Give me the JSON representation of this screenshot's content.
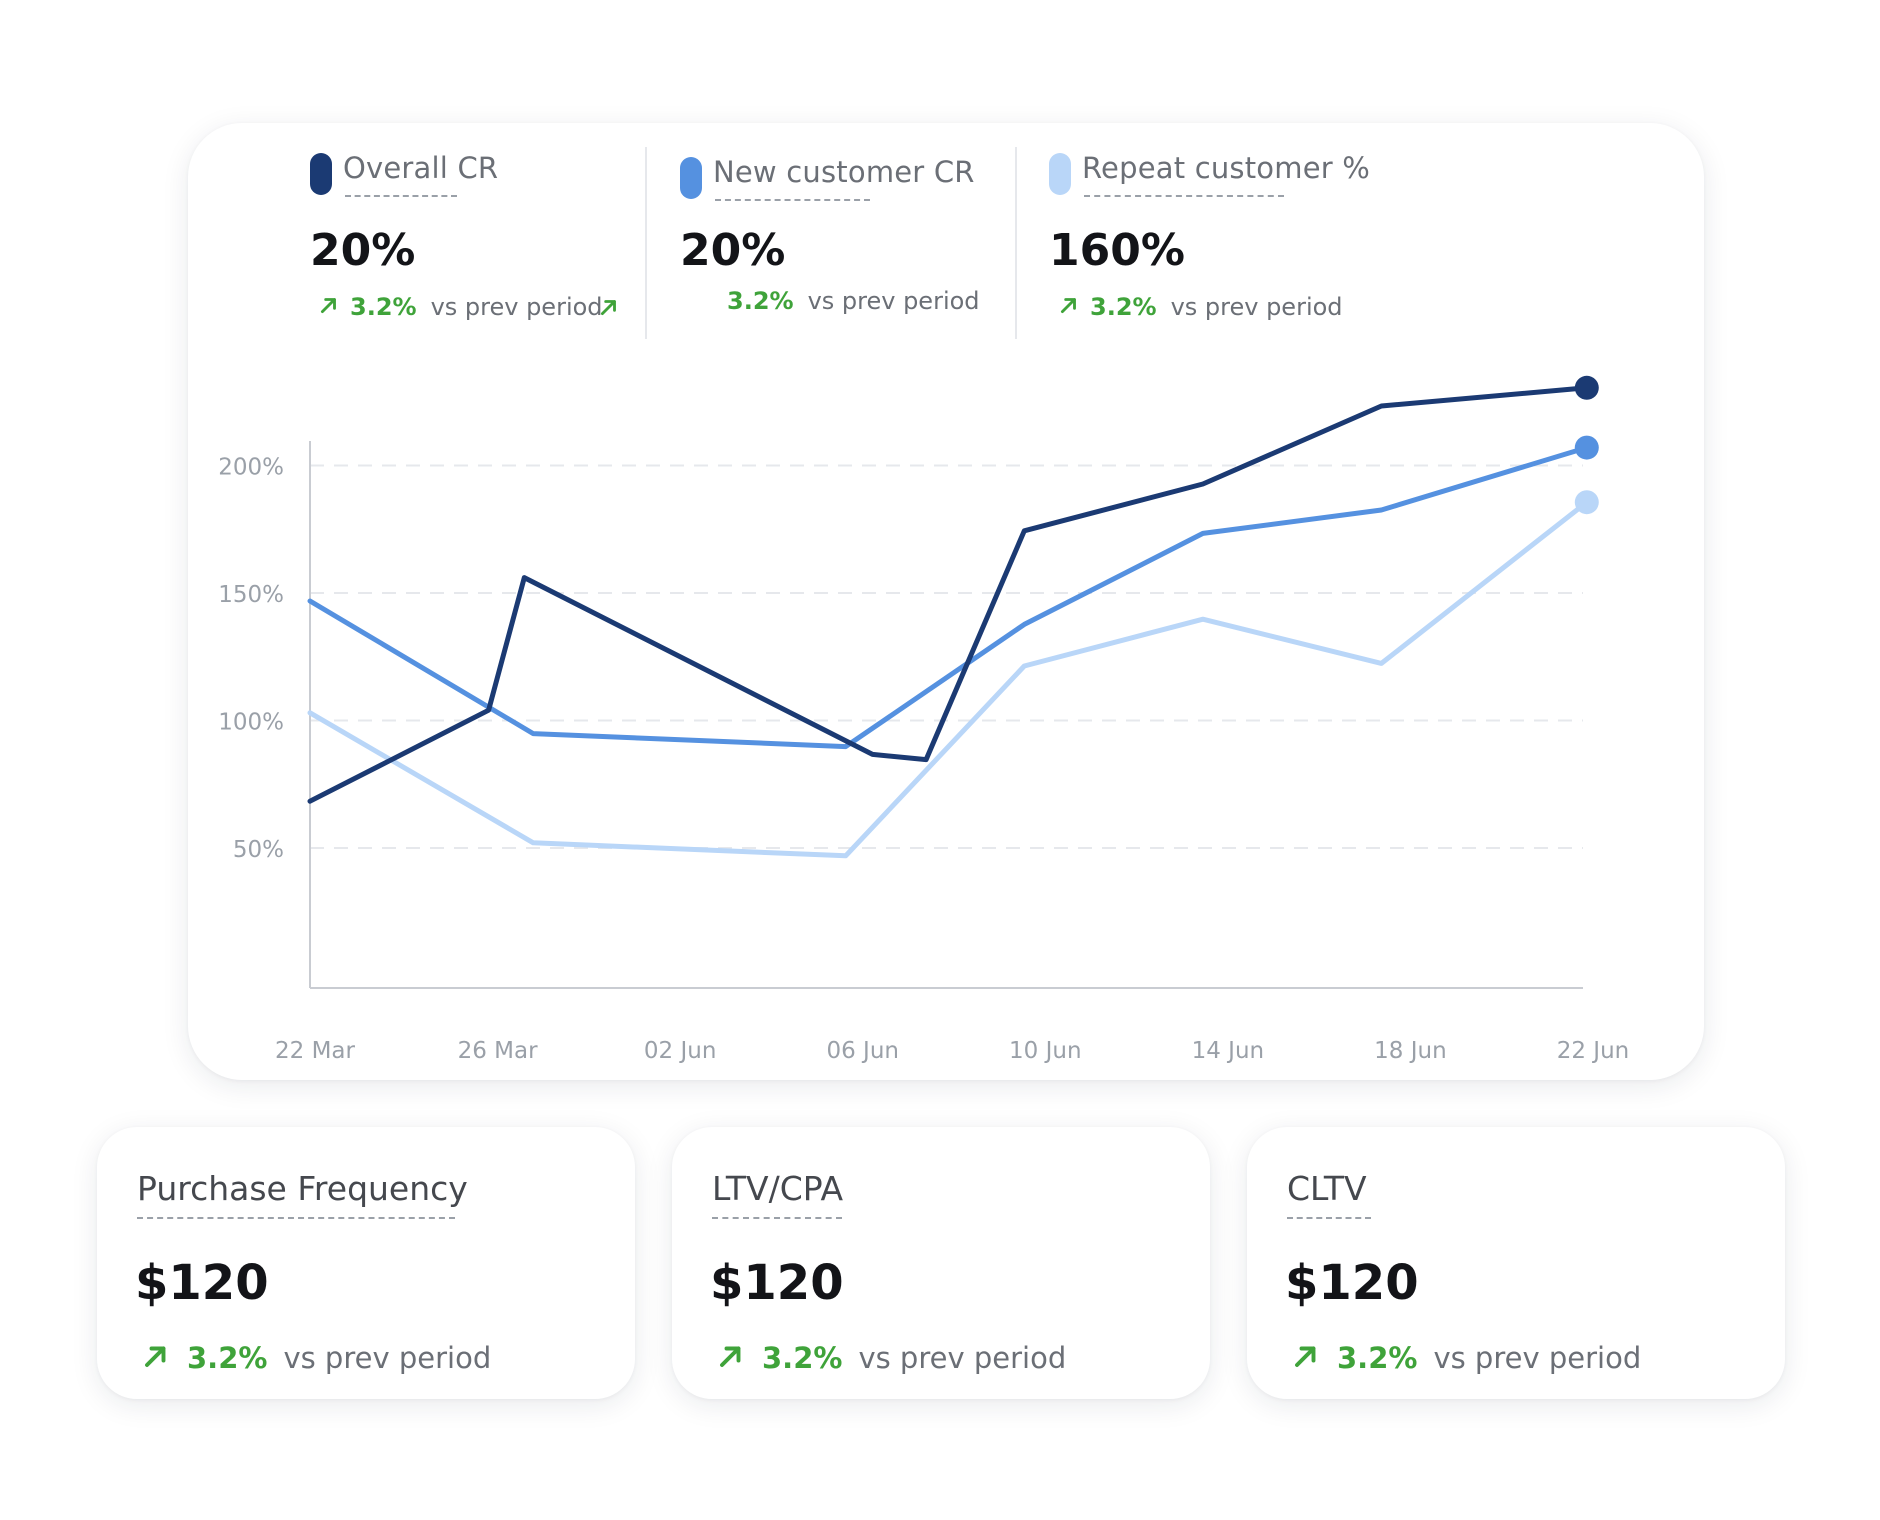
{
  "metrics": [
    {
      "label": "Overall CR",
      "value": "20%",
      "delta": "3.2%",
      "delta_text": "vs prev period",
      "color": "#1b3a73",
      "show_arrow": true
    },
    {
      "label": "New customer CR",
      "value": "20%",
      "delta": "3.2%",
      "delta_text": "vs prev period",
      "color": "#5591e0",
      "show_arrow": false
    },
    {
      "label": "Repeat customer %",
      "value": "160%",
      "delta": "3.2%",
      "delta_text": "vs prev period",
      "color": "#b9d6f8",
      "show_arrow": true
    }
  ],
  "stats": [
    {
      "title": "Purchase Frequency",
      "value": "$120",
      "delta": "3.2%",
      "delta_text": "vs prev period"
    },
    {
      "title": "LTV/CPA",
      "value": "$120",
      "delta": "3.2%",
      "delta_text": "vs prev period"
    },
    {
      "title": "CLTV",
      "value": "$120",
      "delta": "3.2%",
      "delta_text": "vs prev period"
    }
  ],
  "colors": {
    "positive": "#3fa33a",
    "grid": "#e6e8ec",
    "axis": "#c9ccd2"
  },
  "chart_data": {
    "type": "line",
    "x": [
      "22 Mar",
      "26 Mar",
      "02 Jun",
      "06 Jun",
      "10 Jun",
      "14 Jun",
      "18 Jun",
      "22 Jun"
    ],
    "y_ticks": [
      "50%",
      "100%",
      "150%",
      "200%"
    ],
    "ylim": [
      0,
      200
    ],
    "grid": true,
    "series": [
      {
        "name": "Overall CR",
        "color": "#1b3a73",
        "points": [
          [
            0,
            68
          ],
          [
            1,
            103
          ],
          [
            1.2,
            154
          ],
          [
            3.15,
            86
          ],
          [
            3.45,
            84
          ],
          [
            4,
            172
          ],
          [
            5,
            190
          ],
          [
            6,
            220
          ],
          [
            7.15,
            227
          ]
        ]
      },
      {
        "name": "New customer CR",
        "color": "#5591e0",
        "points": [
          [
            0,
            145
          ],
          [
            1.25,
            94
          ],
          [
            3,
            89
          ],
          [
            4,
            136
          ],
          [
            5,
            171
          ],
          [
            6,
            180
          ],
          [
            7.15,
            204
          ]
        ]
      },
      {
        "name": "Repeat customer %",
        "color": "#b9d6f8",
        "points": [
          [
            0,
            102
          ],
          [
            1.25,
            52
          ],
          [
            3,
            47
          ],
          [
            4,
            120
          ],
          [
            5,
            138
          ],
          [
            6,
            121
          ],
          [
            7.15,
            183
          ]
        ]
      }
    ]
  }
}
